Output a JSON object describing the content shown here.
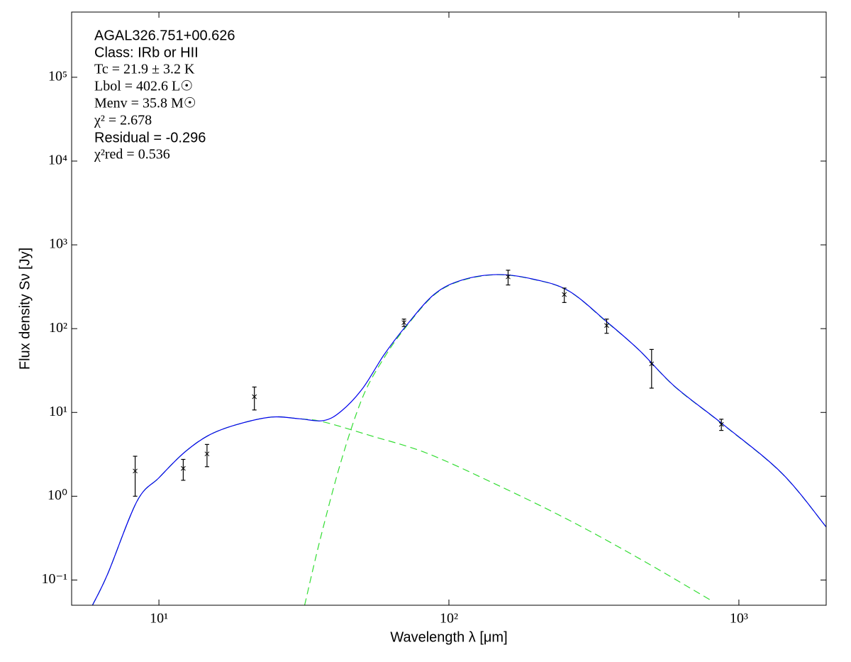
{
  "chart_data": {
    "type": "sed",
    "xlabel": "Wavelength λ [μm]",
    "ylabel": "Flux density Sν [Jy]",
    "annotations": [
      "AGAL326.751+00.626",
      "Class: IRb or HII",
      "Tc = 21.9 ± 3.2 K",
      "Lbol = 402.6 L☉",
      "Menv = 35.8 M☉",
      "χ² = 2.678",
      "Residual = -0.296",
      "χ²red = 0.536"
    ],
    "xscale": "log",
    "yscale": "log",
    "xlim": [
      5,
      2000
    ],
    "ylim": [
      0.05,
      600000
    ],
    "xticks": [
      {
        "value": 10,
        "label": "10¹"
      },
      {
        "value": 100,
        "label": "10²"
      },
      {
        "value": 1000,
        "label": "10³"
      }
    ],
    "yticks": [
      {
        "value": 0.1,
        "label": "10⁻¹"
      },
      {
        "value": 1,
        "label": "10⁰"
      },
      {
        "value": 10,
        "label": "10¹"
      },
      {
        "value": 100,
        "label": "10²"
      },
      {
        "value": 1000,
        "label": "10³"
      },
      {
        "value": 10000,
        "label": "10⁴"
      },
      {
        "value": 100000,
        "label": "10⁵"
      }
    ],
    "series": [
      {
        "kind": "errorbar",
        "color": "#000000",
        "x": [
          8.28,
          12.13,
          14.65,
          21.34,
          70,
          160,
          250,
          350,
          500,
          870
        ],
        "values": [
          2.0,
          2.15,
          3.2,
          15.4,
          118,
          415,
          255,
          109,
          38,
          7.2
        ],
        "errors": [
          1.0,
          0.6,
          0.95,
          4.7,
          12,
          83,
          50,
          21,
          18.5,
          1.1
        ]
      },
      {
        "kind": "line",
        "color": "#33dd33",
        "style": "dashed",
        "x": [
          5.9,
          6.67,
          8.4,
          10,
          12.2,
          14.8,
          18.4,
          24.4,
          30.5,
          37,
          53.5,
          84,
          147,
          259,
          454,
          796
        ],
        "values": [
          0.05,
          0.12,
          0.87,
          1.66,
          3.3,
          5.3,
          7.1,
          8.8,
          8.4,
          7.7,
          5.3,
          3.26,
          1.36,
          0.52,
          0.18,
          0.058
        ]
      },
      {
        "kind": "line",
        "color": "#33dd33",
        "style": "dashed",
        "x": [
          31.8,
          36.1,
          42.6,
          50.5,
          59.8,
          71,
          89,
          111,
          147,
          195,
          259,
          353,
          454,
          600,
          873,
          1403,
          2000
        ],
        "values": [
          0.05,
          0.32,
          2.7,
          15.4,
          45,
          104,
          253,
          376,
          440,
          388,
          281,
          117,
          55,
          20.4,
          7.35,
          1.89,
          0.43
        ]
      },
      {
        "kind": "line",
        "color": "#0000ee",
        "style": "solid",
        "x": [
          5.9,
          6.67,
          8.4,
          10,
          12.2,
          14.8,
          18.4,
          24.4,
          30.5,
          37,
          42.6,
          50.5,
          59.8,
          71,
          89,
          111,
          147,
          195,
          259,
          353,
          454,
          600,
          873,
          1403,
          2000
        ],
        "values": [
          0.05,
          0.12,
          0.87,
          1.66,
          3.3,
          5.3,
          7.1,
          8.8,
          8.4,
          8.0,
          10.4,
          19.5,
          49,
          107,
          257,
          380,
          442,
          390,
          282,
          118,
          55,
          20.5,
          7.4,
          1.9,
          0.43
        ]
      }
    ]
  }
}
